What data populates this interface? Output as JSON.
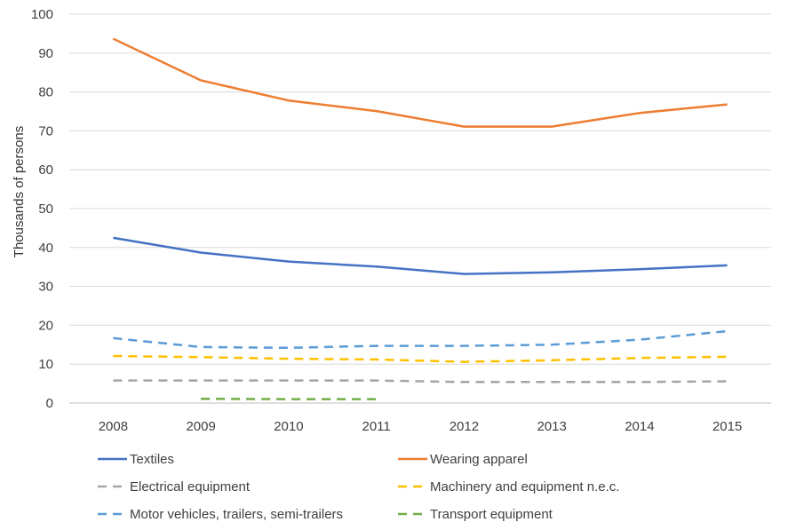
{
  "chart_data": {
    "type": "line",
    "title": "",
    "xlabel": "",
    "ylabel": "Thousands of persons",
    "categories": [
      "2008",
      "2009",
      "2010",
      "2011",
      "2012",
      "2013",
      "2014",
      "2015"
    ],
    "ylim": [
      0,
      100
    ],
    "yticks": [
      0,
      10,
      20,
      30,
      40,
      50,
      60,
      70,
      80,
      90,
      100
    ],
    "grid": true,
    "legend_position": "bottom",
    "series": [
      {
        "name": "Textiles",
        "color": "#4472C4",
        "dashed": false,
        "values": [
          42.5,
          38.7,
          36.4,
          35.1,
          33.2,
          33.6,
          34.4,
          35.4
        ]
      },
      {
        "name": "Wearing apparel",
        "color": "#ED7D31",
        "dashed": false,
        "values": [
          93.7,
          83.0,
          77.8,
          75.1,
          71.1,
          71.1,
          74.6,
          76.8
        ]
      },
      {
        "name": "Electrical equipment",
        "color": "#A5A5A5",
        "dashed": true,
        "values": [
          5.8,
          5.8,
          5.8,
          5.8,
          5.4,
          5.4,
          5.4,
          5.6
        ]
      },
      {
        "name": "Machinery and equipment n.e.c.",
        "color": "#FFC000",
        "dashed": true,
        "values": [
          12.1,
          11.8,
          11.4,
          11.2,
          10.6,
          11.0,
          11.6,
          11.9
        ]
      },
      {
        "name": "Motor vehicles, trailers, semi-trailers",
        "color": "#5B9BD5",
        "dashed": true,
        "values": [
          16.7,
          14.4,
          14.2,
          14.7,
          14.7,
          15.0,
          16.3,
          18.5
        ]
      },
      {
        "name": "Transport equipment",
        "color": "#70AD47",
        "dashed": true,
        "values": [
          null,
          1.1,
          1.0,
          1.0,
          null,
          null,
          null,
          null
        ]
      }
    ]
  }
}
